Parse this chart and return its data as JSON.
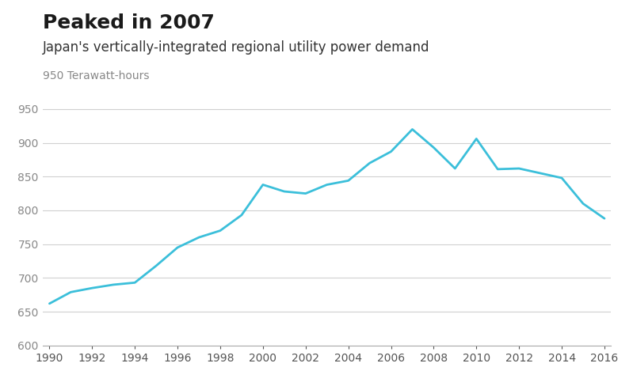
{
  "title": "Peaked in 2007",
  "subtitle": "Japan's vertically-integrated regional utility power demand",
  "ylabel": "950 Terawatt-hours",
  "line_color": "#3bbfda",
  "background_color": "#ffffff",
  "years": [
    1990,
    1991,
    1992,
    1993,
    1994,
    1995,
    1996,
    1997,
    1998,
    1999,
    2000,
    2001,
    2002,
    2003,
    2004,
    2005,
    2006,
    2007,
    2008,
    2009,
    2010,
    2011,
    2012,
    2013,
    2014,
    2015,
    2016
  ],
  "values": [
    662,
    679,
    685,
    690,
    693,
    718,
    745,
    760,
    770,
    793,
    838,
    828,
    825,
    838,
    844,
    870,
    887,
    920,
    893,
    862,
    906,
    861,
    862,
    855,
    848,
    810,
    788
  ],
  "xlim": [
    1990,
    2016
  ],
  "ylim": [
    600,
    960
  ],
  "yticks": [
    600,
    650,
    700,
    750,
    800,
    850,
    900,
    950
  ],
  "xticks": [
    1990,
    1992,
    1994,
    1996,
    1998,
    2000,
    2002,
    2004,
    2006,
    2008,
    2010,
    2012,
    2014,
    2016
  ],
  "grid_color": "#d0d0d0",
  "title_fontsize": 18,
  "subtitle_fontsize": 12,
  "tick_fontsize": 10,
  "label_fontsize": 10,
  "line_width": 2.0
}
